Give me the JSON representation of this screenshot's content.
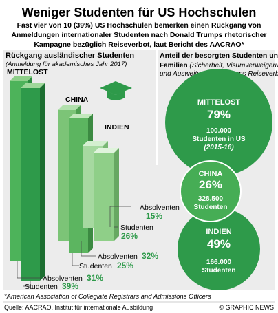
{
  "title": "Weniger Studenten für US Hochschulen",
  "intro": [
    "Fast vier von 10 (39%) US Hochschulen bemerken einen Rückgang von",
    "Anmeldungen  internationaler Studenten nach Donald Trumps rhetorischer",
    "Kampagne bezüglich Reiseverbot, laut Bericht des  AACRAO*"
  ],
  "left": {
    "heading": "Rückgang ausländischer Studenten",
    "subheading": "(Anmeldung für akademisches Jahr 2017)",
    "regions": [
      {
        "name": "MITTELOST",
        "graduates_label": "Absolventen",
        "graduates": "31%",
        "students_label": "Studenten",
        "students": "39%"
      },
      {
        "name": "CHINA",
        "graduates_label": "Absolventen",
        "graduates": "32%",
        "students_label": "Studenten",
        "students": "25%"
      },
      {
        "name": "INDIEN",
        "graduates_label": "Absolventen",
        "graduates": "15%",
        "students_label": "Studenten",
        "students": "26%"
      }
    ]
  },
  "right": {
    "heading": [
      "Anteil der besorgten Studenten und",
      "Familien"
    ],
    "note": [
      "(Sicherheit, Visumverweigerung",
      "und Ausweitung von Trumps Reiseverbot)"
    ],
    "circles": [
      {
        "name": "MITTELOST",
        "percent": "79%",
        "count": "100.000",
        "unit": "Studenten in US",
        "period": "(2015-16)"
      },
      {
        "name": "CHINA",
        "percent": "26%",
        "count": "328.500",
        "unit": "Studenten"
      },
      {
        "name": "INDIEN",
        "percent": "49%",
        "count": "166.000",
        "unit": "Studenten"
      }
    ]
  },
  "footnote": "*American Association of Collegiate Registrars and Admissions Officers",
  "source": "Quelle: AACRAO, Institut für internationale Ausbildung",
  "credit": "© GRAPHIC NEWS"
}
